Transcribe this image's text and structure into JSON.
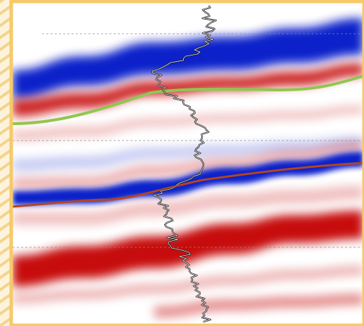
{
  "colors": {
    "frame": "#f6c969",
    "background_hatch": "#f3d48c",
    "positive_amplitude": "#c40000",
    "negative_amplitude": "#0016c8",
    "horizon_upper": "#8fc74f",
    "horizon_lower": "#b5441e",
    "well_log_trace": "#1a1a1a",
    "gridline": "#8a8a8a"
  }
}
